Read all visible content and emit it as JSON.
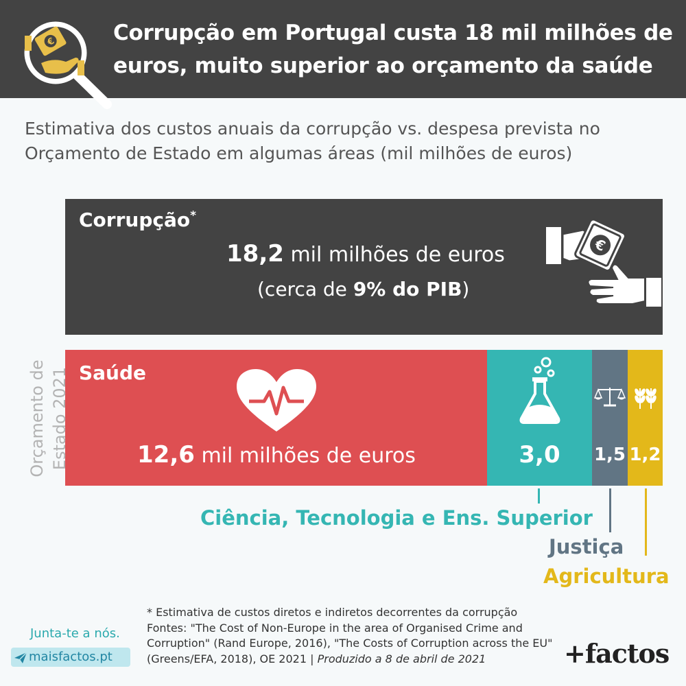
{
  "header": {
    "title": "Corrupção em Portugal custa 18 mil milhões de euros, muito superior ao orçamento da saúde",
    "icon": "magnifier-money-icon"
  },
  "subtitle": "Estimativa dos custos anuais da corrupção vs. despesa prevista no Orçamento de Estado em algumas áreas (mil milhões de euros)",
  "corruption": {
    "name": "Corrupção",
    "asterisk": "*",
    "value": "18,2",
    "unit": "mil milhões de euros",
    "note_prefix": "(cerca de",
    "note_bold": "9% do PIB",
    "note_suffix": ")",
    "icon": "hand-money-icon"
  },
  "budget_label": {
    "line1": "Orçamento de",
    "line2": "Estado 2021"
  },
  "saude": {
    "name": "Saúde",
    "value": "12,6",
    "unit": "mil milhões de euros",
    "icon": "heart-pulse-icon"
  },
  "segments": {
    "ciencia": {
      "value": "3,0",
      "label": "Ciência, Tecnologia e Ens. Superior",
      "icon": "flask-icon"
    },
    "justica": {
      "value": "1,5",
      "label": "Justiça",
      "icon": "scales-icon"
    },
    "agricultura": {
      "value": "1,2",
      "label": "Agricultura",
      "icon": "wheat-icon"
    }
  },
  "colors": {
    "dark": "#434343",
    "saude": "#de4f52",
    "ciencia": "#35b6b3",
    "justica": "#617584",
    "agricultura": "#e3b81a"
  },
  "footnote": {
    "line1": "* Estimativa de custos diretos e indiretos decorrentes da corrupção",
    "sources": "Fontes: \"The Cost of Non-Europe in the area of Organised Crime and Corruption\" (Rand Europe, 2016), \"The Costs of Corruption across the EU\" (Greens/EFA, 2018), OE 2021 |",
    "produced": "Produzido a 8 de abril de 2021"
  },
  "promo": {
    "join": "Junta-te a nós.",
    "site": "maisfactos.pt",
    "icon": "paper-plane-icon"
  },
  "brand": "+factos",
  "chart_data": {
    "type": "bar",
    "unit": "mil milhões de euros",
    "categories": [
      "Corrupção",
      "Saúde",
      "Ciência, Tecnologia e Ens. Superior",
      "Justiça",
      "Agricultura"
    ],
    "values": [
      18.2,
      12.6,
      3.0,
      1.5,
      1.2
    ]
  }
}
